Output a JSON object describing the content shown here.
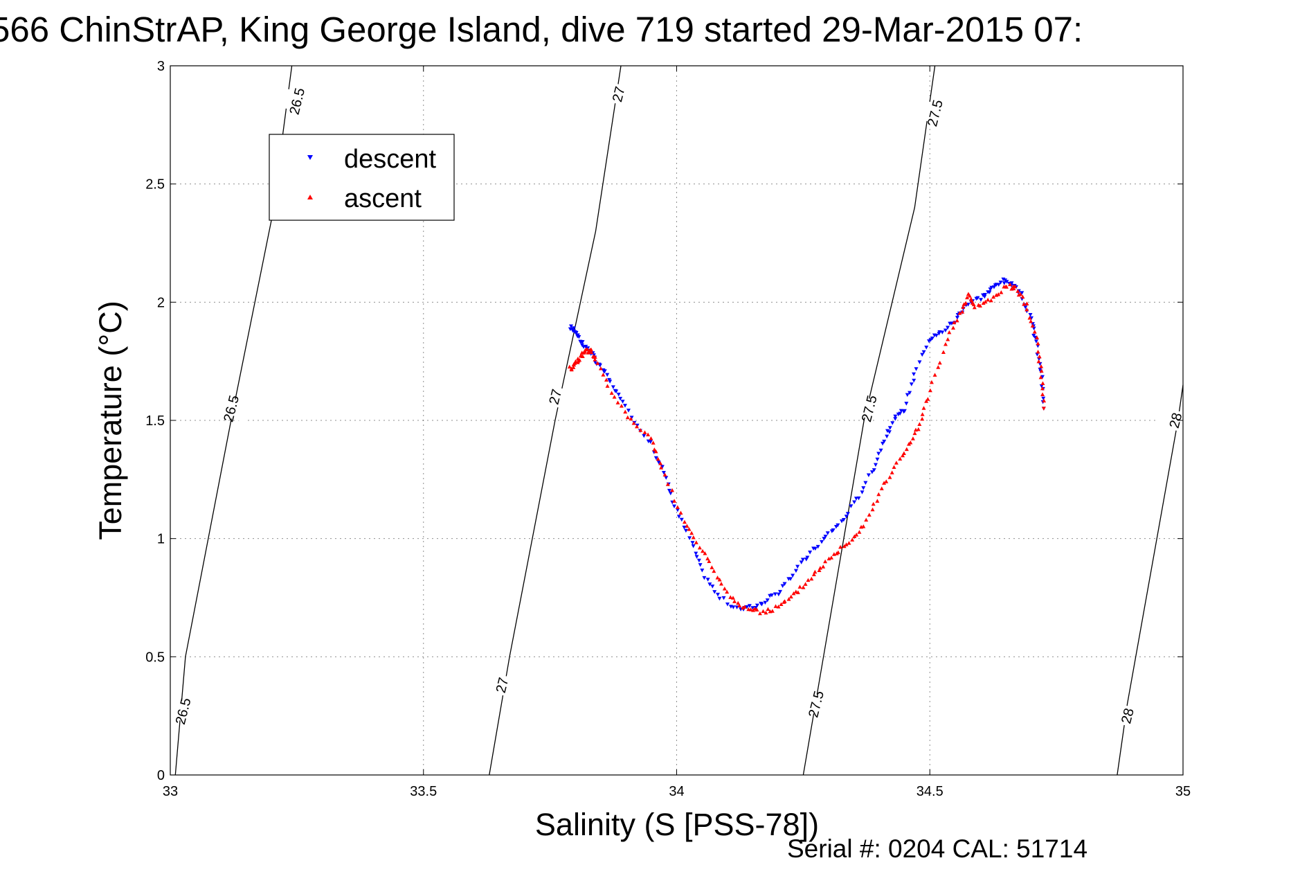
{
  "chart_data": {
    "type": "scatter",
    "title": "566 ChinStrAP, King George Island, dive 719 started 29-Mar-2015 07:",
    "xlabel": "Salinity (S [PSS-78])",
    "ylabel": "Temperature (°C)",
    "xlim": [
      33,
      35
    ],
    "ylim": [
      0,
      3
    ],
    "xticks": [
      "33",
      "33.5",
      "34",
      "34.5",
      "35"
    ],
    "yticks": [
      "0",
      "0.5",
      "1",
      "1.5",
      "2",
      "2.5",
      "3"
    ],
    "grid": true,
    "legend_position": "upper-left",
    "footer": "Serial #: 0204  CAL: 51714",
    "contours": [
      {
        "label": "26.5",
        "points": [
          [
            33.01,
            0
          ],
          [
            33.03,
            0.5
          ],
          [
            33.12,
            1.5
          ],
          [
            33.2,
            2.35
          ],
          [
            33.24,
            3
          ]
        ],
        "labels": [
          [
            33.025,
            0.27
          ],
          [
            33.12,
            1.55
          ],
          [
            33.25,
            2.85
          ]
        ]
      },
      {
        "label": "27",
        "points": [
          [
            33.63,
            0
          ],
          [
            33.67,
            0.5
          ],
          [
            33.76,
            1.5
          ],
          [
            33.84,
            2.3
          ],
          [
            33.89,
            3
          ]
        ],
        "labels": [
          [
            33.655,
            0.38
          ],
          [
            33.76,
            1.6
          ],
          [
            33.885,
            2.88
          ]
        ]
      },
      {
        "label": "27.5",
        "points": [
          [
            34.25,
            0
          ],
          [
            34.29,
            0.5
          ],
          [
            34.37,
            1.5
          ],
          [
            34.47,
            2.4
          ],
          [
            34.51,
            3
          ]
        ],
        "labels": [
          [
            34.275,
            0.3
          ],
          [
            34.38,
            1.55
          ],
          [
            34.51,
            2.8
          ]
        ]
      },
      {
        "label": "28",
        "points": [
          [
            34.87,
            0
          ],
          [
            34.89,
            0.3
          ],
          [
            34.99,
            1.5
          ],
          [
            35.0,
            1.65
          ]
        ],
        "labels": [
          [
            34.89,
            0.25
          ],
          [
            34.985,
            1.5
          ]
        ]
      }
    ],
    "series": [
      {
        "name": "descent",
        "color": "#0000ff",
        "marker": "triangle-down",
        "x": [
          33.79,
          33.8,
          33.81,
          33.82,
          33.83,
          33.84,
          33.86,
          33.88,
          33.91,
          33.95,
          33.98,
          34.0,
          34.03,
          34.05,
          34.08,
          34.12,
          34.15,
          34.18,
          34.21,
          34.24,
          34.27,
          34.3,
          34.33,
          34.36,
          34.39,
          34.41,
          34.43,
          34.45,
          34.47,
          34.5,
          34.52,
          34.55,
          34.57,
          34.6,
          34.62,
          34.64,
          34.66,
          34.68,
          34.7,
          34.71,
          34.72,
          34.725
        ],
        "y": [
          1.89,
          1.88,
          1.84,
          1.81,
          1.79,
          1.75,
          1.7,
          1.62,
          1.52,
          1.4,
          1.25,
          1.12,
          0.98,
          0.86,
          0.76,
          0.7,
          0.71,
          0.74,
          0.79,
          0.88,
          0.95,
          1.02,
          1.08,
          1.18,
          1.3,
          1.42,
          1.5,
          1.55,
          1.7,
          1.84,
          1.87,
          1.92,
          1.99,
          2.02,
          2.05,
          2.09,
          2.08,
          2.03,
          1.93,
          1.83,
          1.7,
          1.55
        ]
      },
      {
        "name": "ascent",
        "color": "#ff0000",
        "marker": "triangle-up",
        "x": [
          33.79,
          33.8,
          33.81,
          33.82,
          33.83,
          33.84,
          33.87,
          33.91,
          33.95,
          33.97,
          34.01,
          34.04,
          34.07,
          34.1,
          34.13,
          34.16,
          34.19,
          34.22,
          34.25,
          34.28,
          34.31,
          34.34,
          34.37,
          34.4,
          34.43,
          34.46,
          34.48,
          34.5,
          34.53,
          34.56,
          34.575,
          34.59,
          34.62,
          34.65,
          34.67,
          34.69,
          34.71,
          34.72,
          34.725
        ],
        "y": [
          1.72,
          1.74,
          1.77,
          1.79,
          1.8,
          1.76,
          1.62,
          1.5,
          1.42,
          1.3,
          1.1,
          0.98,
          0.88,
          0.77,
          0.71,
          0.69,
          0.7,
          0.74,
          0.8,
          0.87,
          0.93,
          0.99,
          1.06,
          1.19,
          1.3,
          1.4,
          1.48,
          1.62,
          1.82,
          1.95,
          2.03,
          1.98,
          2.01,
          2.07,
          2.06,
          1.99,
          1.85,
          1.7,
          1.55
        ]
      }
    ]
  }
}
